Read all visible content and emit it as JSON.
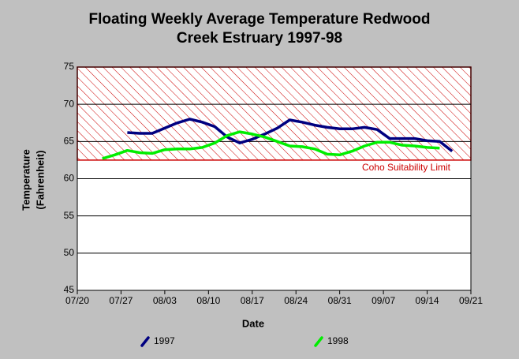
{
  "chart_data": {
    "type": "line",
    "title": [
      "Floating Weekly Average Temperature Redwood",
      "Creek Estruary 1997-98"
    ],
    "x_label": "Date",
    "y_label": [
      "Temperature",
      "(Fahrenheit)"
    ],
    "xlim": [
      "07/20",
      "09/21"
    ],
    "xticks": [
      "07/20",
      "07/27",
      "08/03",
      "08/10",
      "08/17",
      "08/24",
      "08/31",
      "09/07",
      "09/14",
      "09/21"
    ],
    "ylim": [
      45,
      75
    ],
    "yticks": [
      45,
      50,
      55,
      60,
      65,
      70,
      75
    ],
    "grid": true,
    "legend": "bottom",
    "annotation": {
      "text": "Coho Suitability Limit",
      "range": [
        62.5,
        75
      ],
      "color": "#cc0000"
    },
    "series": [
      {
        "name": "1997",
        "color": "#000080",
        "x": [
          "07/28",
          "07/30",
          "08/01",
          "08/03",
          "08/05",
          "08/07",
          "08/09",
          "08/11",
          "08/13",
          "08/15",
          "08/17",
          "08/19",
          "08/21",
          "08/23",
          "08/25",
          "08/27",
          "08/29",
          "08/31",
          "09/02",
          "09/04",
          "09/06",
          "09/08",
          "09/10",
          "09/12",
          "09/14",
          "09/16",
          "09/18"
        ],
        "values": [
          66.2,
          66.1,
          66.1,
          66.8,
          67.5,
          68.0,
          67.6,
          67.0,
          65.6,
          64.8,
          65.3,
          66.0,
          66.8,
          67.9,
          67.6,
          67.2,
          66.9,
          66.7,
          66.7,
          66.9,
          66.6,
          65.4,
          65.4,
          65.4,
          65.1,
          65.0,
          63.7
        ]
      },
      {
        "name": "1998",
        "color": "#00ee00",
        "x": [
          "07/24",
          "07/26",
          "07/28",
          "07/30",
          "08/01",
          "08/03",
          "08/05",
          "08/07",
          "08/09",
          "08/11",
          "08/13",
          "08/15",
          "08/17",
          "08/19",
          "08/21",
          "08/23",
          "08/25",
          "08/27",
          "08/29",
          "08/31",
          "09/02",
          "09/04",
          "09/06",
          "09/08",
          "09/10",
          "09/12",
          "09/14",
          "09/16"
        ],
        "values": [
          62.7,
          63.2,
          63.8,
          63.5,
          63.4,
          63.9,
          64.0,
          64.0,
          64.2,
          64.8,
          65.8,
          66.3,
          66.0,
          65.6,
          65.0,
          64.4,
          64.3,
          64.0,
          63.3,
          63.2,
          63.7,
          64.4,
          64.9,
          64.9,
          64.5,
          64.4,
          64.2,
          64.1
        ]
      }
    ]
  }
}
